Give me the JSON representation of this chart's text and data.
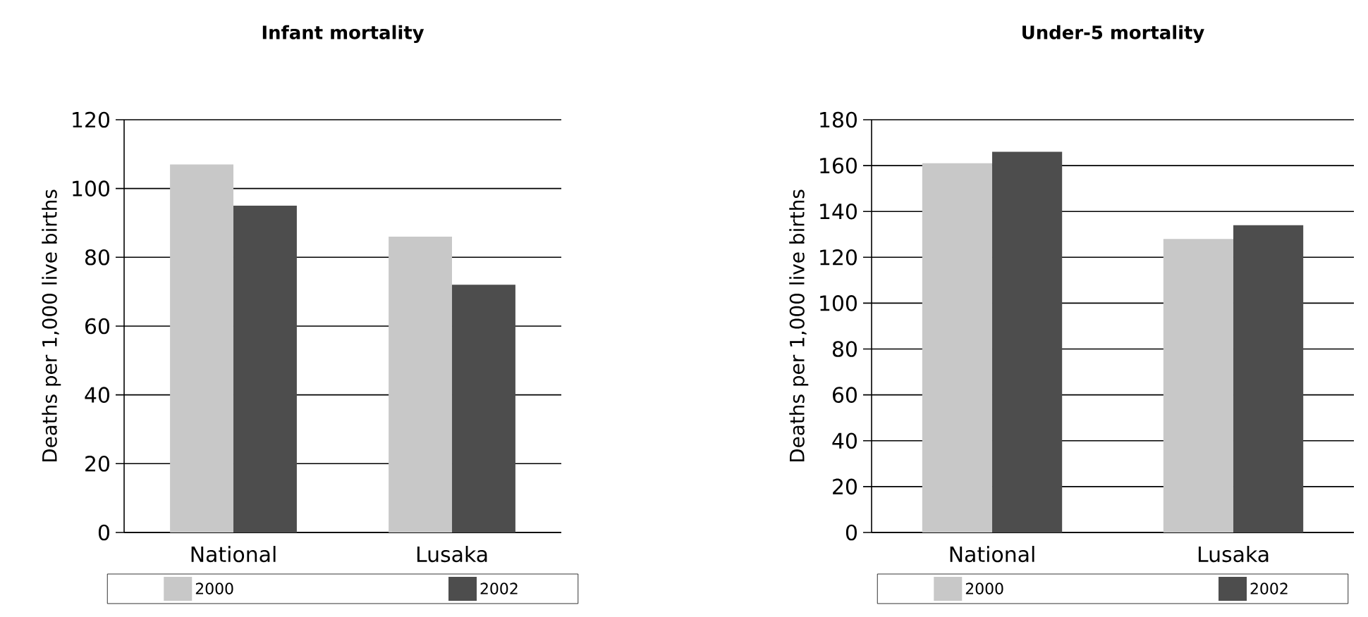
{
  "chart_data": [
    {
      "type": "bar",
      "title": "Infant mortality",
      "ylabel": "Deaths per 1,000 live births",
      "categories": [
        "National",
        "Lusaka"
      ],
      "series": [
        {
          "name": "2000",
          "color": "#c8c8c8",
          "values": [
            107,
            86
          ]
        },
        {
          "name": "2002",
          "color": "#4d4d4d",
          "values": [
            95,
            72
          ]
        }
      ],
      "ylim": [
        0,
        120
      ],
      "yticks": [
        0,
        20,
        40,
        60,
        80,
        100,
        120
      ],
      "grid": "y",
      "legend": "bottom"
    },
    {
      "type": "bar",
      "title": "Under-5 mortality",
      "ylabel": "Deaths per 1,000 live births",
      "categories": [
        "National",
        "Lusaka"
      ],
      "series": [
        {
          "name": "2000",
          "color": "#c8c8c8",
          "values": [
            161,
            128
          ]
        },
        {
          "name": "2002",
          "color": "#4d4d4d",
          "values": [
            166,
            134
          ]
        }
      ],
      "ylim": [
        0,
        180
      ],
      "yticks": [
        0,
        20,
        40,
        60,
        80,
        100,
        120,
        140,
        160,
        180
      ],
      "grid": "y",
      "legend": "bottom"
    }
  ]
}
